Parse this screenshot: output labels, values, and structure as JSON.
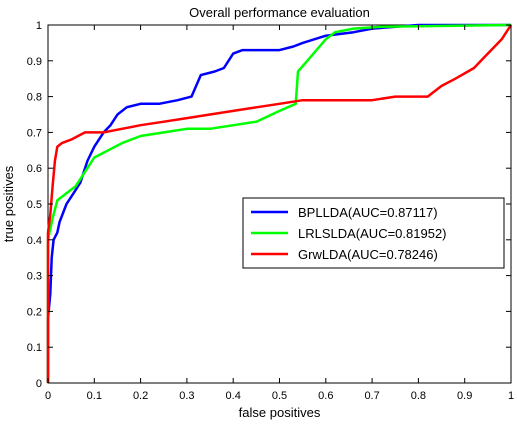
{
  "chart_data": {
    "type": "line",
    "title": "Overall performance evaluation",
    "xlabel": "false positives",
    "ylabel": "true positives",
    "xlim": [
      0,
      1
    ],
    "ylim": [
      0,
      1
    ],
    "xticks": [
      "0",
      "0.1",
      "0.2",
      "0.3",
      "0.4",
      "0.5",
      "0.6",
      "0.7",
      "0.8",
      "0.9",
      "1"
    ],
    "yticks": [
      "0",
      "0.1",
      "0.2",
      "0.3",
      "0.4",
      "0.5",
      "0.6",
      "0.7",
      "0.8",
      "0.9",
      "1"
    ],
    "grid": false,
    "legend_position": "right-middle",
    "series": [
      {
        "name": "BPLLDA(AUC=0.87117)",
        "color": "#0000ff",
        "points": [
          [
            0,
            0
          ],
          [
            0,
            0.18
          ],
          [
            0.005,
            0.25
          ],
          [
            0.008,
            0.35
          ],
          [
            0.012,
            0.4
          ],
          [
            0.02,
            0.42
          ],
          [
            0.025,
            0.45
          ],
          [
            0.04,
            0.5
          ],
          [
            0.055,
            0.53
          ],
          [
            0.07,
            0.56
          ],
          [
            0.085,
            0.62
          ],
          [
            0.1,
            0.66
          ],
          [
            0.12,
            0.7
          ],
          [
            0.135,
            0.72
          ],
          [
            0.15,
            0.75
          ],
          [
            0.17,
            0.77
          ],
          [
            0.2,
            0.78
          ],
          [
            0.24,
            0.78
          ],
          [
            0.28,
            0.79
          ],
          [
            0.31,
            0.8
          ],
          [
            0.33,
            0.86
          ],
          [
            0.36,
            0.87
          ],
          [
            0.38,
            0.88
          ],
          [
            0.4,
            0.92
          ],
          [
            0.42,
            0.93
          ],
          [
            0.5,
            0.93
          ],
          [
            0.53,
            0.94
          ],
          [
            0.55,
            0.95
          ],
          [
            0.6,
            0.97
          ],
          [
            0.66,
            0.98
          ],
          [
            0.7,
            0.99
          ],
          [
            0.8,
            1.0
          ],
          [
            1.0,
            1.0
          ]
        ]
      },
      {
        "name": "LRLSLDA(AUC=0.81952)",
        "color": "#00ff00",
        "points": [
          [
            0,
            0
          ],
          [
            0,
            0.4
          ],
          [
            0.01,
            0.46
          ],
          [
            0.02,
            0.51
          ],
          [
            0.04,
            0.53
          ],
          [
            0.06,
            0.55
          ],
          [
            0.08,
            0.59
          ],
          [
            0.1,
            0.63
          ],
          [
            0.13,
            0.65
          ],
          [
            0.16,
            0.67
          ],
          [
            0.2,
            0.69
          ],
          [
            0.25,
            0.7
          ],
          [
            0.3,
            0.71
          ],
          [
            0.35,
            0.71
          ],
          [
            0.4,
            0.72
          ],
          [
            0.45,
            0.73
          ],
          [
            0.5,
            0.76
          ],
          [
            0.535,
            0.78
          ],
          [
            0.54,
            0.87
          ],
          [
            0.56,
            0.9
          ],
          [
            0.58,
            0.93
          ],
          [
            0.6,
            0.96
          ],
          [
            0.62,
            0.98
          ],
          [
            0.66,
            0.99
          ],
          [
            0.72,
            0.995
          ],
          [
            1.0,
            1.0
          ]
        ]
      },
      {
        "name": "GrwLDA(AUC=0.78246)",
        "color": "#ff0000",
        "points": [
          [
            0,
            0
          ],
          [
            0,
            0.42
          ],
          [
            0.005,
            0.47
          ],
          [
            0.01,
            0.55
          ],
          [
            0.015,
            0.62
          ],
          [
            0.02,
            0.66
          ],
          [
            0.03,
            0.67
          ],
          [
            0.05,
            0.68
          ],
          [
            0.08,
            0.7
          ],
          [
            0.12,
            0.7
          ],
          [
            0.16,
            0.71
          ],
          [
            0.2,
            0.72
          ],
          [
            0.25,
            0.73
          ],
          [
            0.3,
            0.74
          ],
          [
            0.35,
            0.75
          ],
          [
            0.4,
            0.76
          ],
          [
            0.45,
            0.77
          ],
          [
            0.5,
            0.78
          ],
          [
            0.55,
            0.79
          ],
          [
            0.6,
            0.79
          ],
          [
            0.65,
            0.79
          ],
          [
            0.7,
            0.79
          ],
          [
            0.75,
            0.8
          ],
          [
            0.8,
            0.8
          ],
          [
            0.82,
            0.8
          ],
          [
            0.85,
            0.83
          ],
          [
            0.88,
            0.85
          ],
          [
            0.92,
            0.88
          ],
          [
            0.95,
            0.92
          ],
          [
            0.98,
            0.96
          ],
          [
            1.0,
            1.0
          ]
        ]
      }
    ]
  }
}
